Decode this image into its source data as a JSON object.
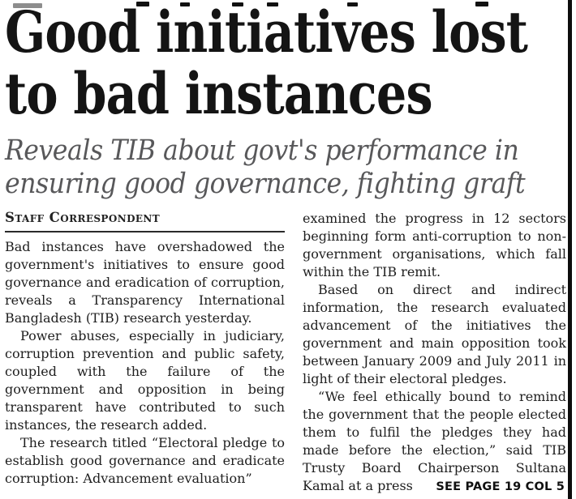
{
  "headline": {
    "line1": "Good initiatives lost",
    "line2": "to bad instances"
  },
  "subheadline": {
    "line1": "Reveals TIB about govt's performance in",
    "line2": "ensuring good governance, fighting graft"
  },
  "byline": "Staff Correspondent",
  "column1": {
    "para1": "Bad instances have overshadowed the government's initiatives to ensure good governance and eradication of corruption, reveals a Transparency International Bangladesh (TIB) research yesterday.",
    "para2": "Power abuses, especially in judiciary, corruption prevention and public safety, coupled with the failure of the government and opposition in being transparent have contributed to such instances, the research added.",
    "para3": "The research titled “Electoral pledge to establish good governance and eradicate corruption: Advancement evaluation”"
  },
  "column2": {
    "para1": "examined the progress in 12 sectors beginning form anti-corruption to non-government organisations, which fall within the TIB remit.",
    "para2": "Based on direct and indirect information, the research evaluated advancement of the initiatives the government and main opposition took between January 2009 and July 2011 in light of their electoral pledges.",
    "para3": "“We feel ethically bound to remind the government that the people elected them to fulfil the pledges they had made before the election,” said TIB Trusty Board Chairperson Sultana Kamal at a press"
  },
  "continuation": "SEE PAGE 19 COL 5",
  "colors": {
    "ink": "#1e1e1e",
    "headline": "#141414",
    "subheadline": "#58585a",
    "edge_bar": "#0d0d0d",
    "background": "#ffffff"
  }
}
